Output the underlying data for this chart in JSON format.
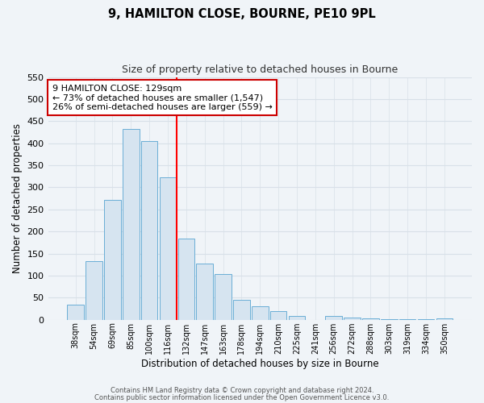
{
  "title": "9, HAMILTON CLOSE, BOURNE, PE10 9PL",
  "subtitle": "Size of property relative to detached houses in Bourne",
  "xlabel": "Distribution of detached houses by size in Bourne",
  "ylabel": "Number of detached properties",
  "categories": [
    "38sqm",
    "54sqm",
    "69sqm",
    "85sqm",
    "100sqm",
    "116sqm",
    "132sqm",
    "147sqm",
    "163sqm",
    "178sqm",
    "194sqm",
    "210sqm",
    "225sqm",
    "241sqm",
    "256sqm",
    "272sqm",
    "288sqm",
    "303sqm",
    "319sqm",
    "334sqm",
    "350sqm"
  ],
  "values": [
    35,
    133,
    272,
    432,
    405,
    323,
    183,
    128,
    103,
    45,
    30,
    20,
    8,
    0,
    8,
    5,
    3,
    2,
    2,
    2,
    3
  ],
  "bar_color": "#d6e4f0",
  "bar_edge_color": "#6aaed6",
  "vline_color": "red",
  "vline_index": 5.5,
  "annotation_title": "9 HAMILTON CLOSE: 129sqm",
  "annotation_line1": "← 73% of detached houses are smaller (1,547)",
  "annotation_line2": "26% of semi-detached houses are larger (559) →",
  "annotation_box_facecolor": "white",
  "annotation_box_edgecolor": "#cc0000",
  "ylim": [
    0,
    550
  ],
  "yticks": [
    0,
    50,
    100,
    150,
    200,
    250,
    300,
    350,
    400,
    450,
    500,
    550
  ],
  "title_fontsize": 10.5,
  "subtitle_fontsize": 9,
  "axis_label_fontsize": 8.5,
  "tick_fontsize": 8,
  "xtick_fontsize": 7,
  "annotation_fontsize": 8,
  "footer_line1": "Contains HM Land Registry data © Crown copyright and database right 2024.",
  "footer_line2": "Contains public sector information licensed under the Open Government Licence v3.0.",
  "footer_fontsize": 6,
  "fig_facecolor": "#f0f4f8",
  "axes_facecolor": "#f0f4f8",
  "grid_color": "#d8e0e8"
}
